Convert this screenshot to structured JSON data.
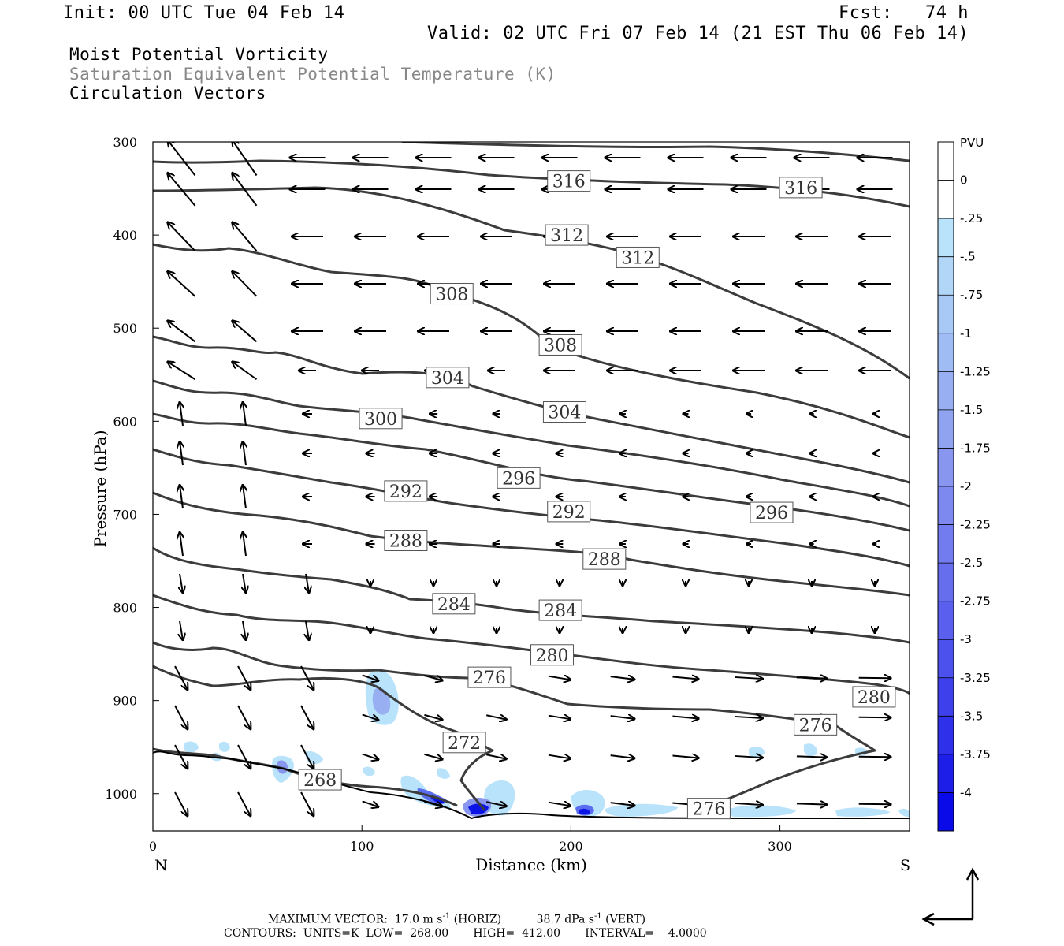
{
  "header": {
    "init": "Init: 00 UTC Tue 04 Feb 14",
    "fcst": "Fcst:   74 h",
    "valid": "Valid: 02 UTC Fri 07 Feb 14 (21 EST Thu 06 Feb 14)",
    "field1": "Moist Potential Vorticity",
    "field2": "Saturation Equivalent Potential Temperature (K)",
    "field3": "Circulation Vectors"
  },
  "footer": {
    "max_vector_label": "MAXIMUM VECTOR:",
    "horiz_value": "17.0 m s",
    "horiz_exp": "-1",
    "horiz_tag": "(HORIZ)",
    "vert_value": "38.7 dPa s",
    "vert_exp": "-1",
    "vert_tag": "(VERT)",
    "contours": "CONTOURS:  UNITS=K  LOW=  268.00       HIGH=  412.00       INTERVAL=    4.0000"
  },
  "colors": {
    "contour": "#3c3c3c",
    "ground": "#000000",
    "pv_light": "#b9e3fa",
    "pv_mid": "#8fb2f0",
    "pv_strong": "#5a6cf0",
    "pv_max": "#0a14e6"
  },
  "chart_data": {
    "type": "cross-section",
    "xlabel": "Distance (km)",
    "ylabel": "Pressure (hPa)",
    "x_ticks": [
      "0",
      "100",
      "200",
      "300"
    ],
    "x_tick_values": [
      0,
      100,
      200,
      300
    ],
    "y_ticks": [
      "300",
      "400",
      "500",
      "600",
      "700",
      "800",
      "900",
      "1000"
    ],
    "y_tick_values": [
      300,
      400,
      500,
      600,
      700,
      800,
      900,
      1000
    ],
    "xlim": [
      0,
      362
    ],
    "ylim": [
      300,
      1040
    ],
    "left_end_label": "N",
    "right_end_label": "S",
    "colorbar": {
      "unit": "PVU",
      "ticks": [
        "0",
        "-.25",
        "-.5",
        "-.75",
        "-1",
        "-1.25",
        "-1.5",
        "-1.75",
        "-2",
        "-2.25",
        "-2.5",
        "-2.75",
        "-3",
        "-3.25",
        "-3.5",
        "-3.75",
        "-4"
      ],
      "colors": [
        "#ffffff",
        "#ffffff",
        "#b9e3fa",
        "#b1d6f8",
        "#a8c8f6",
        "#a0bcf4",
        "#98b0f2",
        "#90a3f1",
        "#8896f0",
        "#7e89ef",
        "#727cee",
        "#666eed",
        "#5a60ed",
        "#4c50ec",
        "#3e40eb",
        "#2e30ea",
        "#1e1ee9",
        "#0a0ae8"
      ]
    },
    "contour_labels": [
      {
        "text": "316",
        "x": 199,
        "p": 342
      },
      {
        "text": "316",
        "x": 310,
        "p": 349
      },
      {
        "text": "312",
        "x": 198,
        "p": 400
      },
      {
        "text": "312",
        "x": 232,
        "p": 424
      },
      {
        "text": "308",
        "x": 143,
        "p": 463
      },
      {
        "text": "308",
        "x": 195,
        "p": 518
      },
      {
        "text": "304",
        "x": 141,
        "p": 553
      },
      {
        "text": "304",
        "x": 197,
        "p": 590
      },
      {
        "text": "300",
        "x": 109,
        "p": 597
      },
      {
        "text": "296",
        "x": 175,
        "p": 661
      },
      {
        "text": "296",
        "x": 296,
        "p": 698
      },
      {
        "text": "292",
        "x": 121,
        "p": 675
      },
      {
        "text": "292",
        "x": 199,
        "p": 697
      },
      {
        "text": "288",
        "x": 121,
        "p": 728
      },
      {
        "text": "288",
        "x": 216,
        "p": 748
      },
      {
        "text": "284",
        "x": 144,
        "p": 796
      },
      {
        "text": "284",
        "x": 195,
        "p": 803
      },
      {
        "text": "280",
        "x": 191,
        "p": 851
      },
      {
        "text": "280",
        "x": 345,
        "p": 896
      },
      {
        "text": "276",
        "x": 161,
        "p": 875
      },
      {
        "text": "276",
        "x": 317,
        "p": 926
      },
      {
        "text": "276",
        "x": 266,
        "p": 1016
      },
      {
        "text": "272",
        "x": 149,
        "p": 945
      },
      {
        "text": "268",
        "x": 80,
        "p": 985
      }
    ]
  }
}
